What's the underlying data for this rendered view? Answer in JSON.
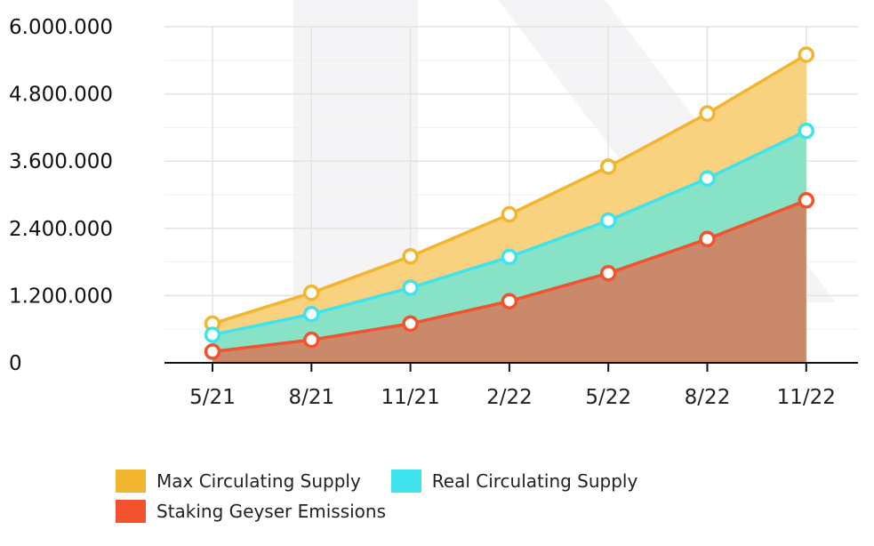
{
  "chart_data": {
    "type": "area",
    "x": [
      "5/21",
      "8/21",
      "11/21",
      "2/22",
      "5/22",
      "8/22",
      "11/22"
    ],
    "yticks": [
      "0",
      "1.200.000",
      "2.400.000",
      "3.600.000",
      "4.800.000",
      "6.000.000"
    ],
    "ylim": [
      0,
      6000000
    ],
    "grid": true,
    "stacked": false,
    "legend_position": "bottom",
    "series": [
      {
        "name": "Max Circulating Supply",
        "color": "#f2b52d",
        "fill": "#f8d27e",
        "values": [
          700000,
          1250000,
          1900000,
          2650000,
          3500000,
          4450000,
          5500000
        ]
      },
      {
        "name": "Real Circulating Supply",
        "color": "#3fe3ee",
        "fill": "#88e2c6",
        "values": [
          500000,
          870000,
          1340000,
          1890000,
          2540000,
          3290000,
          4140000
        ]
      },
      {
        "name": "Staking Geyser Emissions",
        "color": "#f2522e",
        "fill": "#c9896a",
        "values": [
          200000,
          410000,
          700000,
          1100000,
          1600000,
          2210000,
          2900000
        ]
      }
    ]
  }
}
